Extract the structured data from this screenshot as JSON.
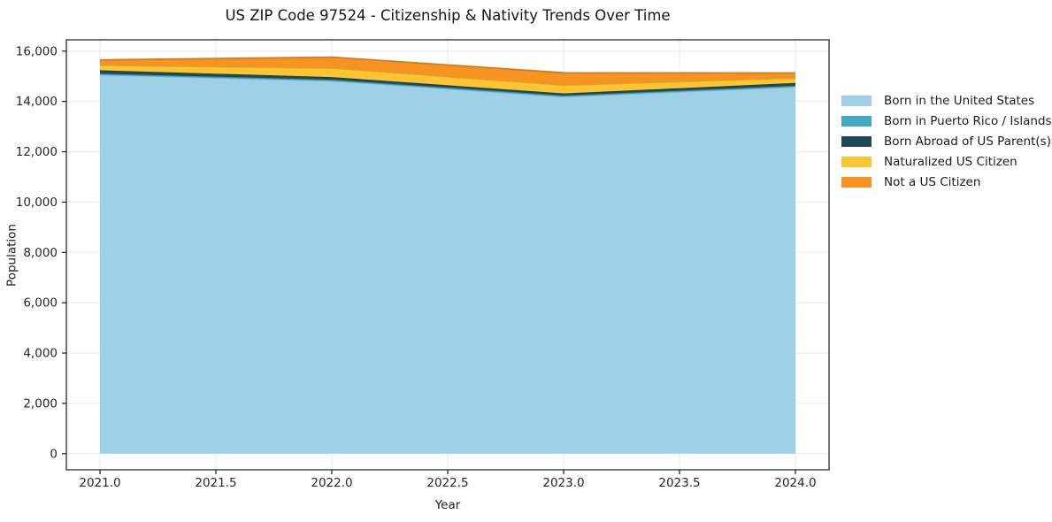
{
  "title": "US ZIP Code 97524 - Citizenship & Nativity Trends Over Time",
  "chart_data": {
    "type": "area",
    "stacked": true,
    "title": "US ZIP Code 97524 - Citizenship & Nativity Trends Over Time",
    "xlabel": "Year",
    "ylabel": "Population",
    "x": [
      2021,
      2022,
      2023,
      2024
    ],
    "series": [
      {
        "name": "Born in the United States",
        "color": "#9fd1e6",
        "values": [
          15060,
          14820,
          14190,
          14580
        ]
      },
      {
        "name": "Born in Puerto Rico / Islands",
        "color": "#42a9c5",
        "values": [
          45,
          45,
          45,
          45
        ]
      },
      {
        "name": "Born Abroad of US Parent(s)",
        "color": "#1e4a58",
        "values": [
          135,
          105,
          85,
          110
        ]
      },
      {
        "name": "Naturalized US Citizen",
        "color": "#fdc532",
        "values": [
          200,
          360,
          330,
          200
        ]
      },
      {
        "name": "Not a US Citizen",
        "color": "#f79321",
        "values": [
          210,
          430,
          490,
          195
        ]
      }
    ],
    "totals": [
      15650,
      15760,
      15140,
      15130
    ],
    "x_ticks": [
      "2021.0",
      "2021.5",
      "2022.0",
      "2022.5",
      "2023.0",
      "2023.5",
      "2024.0"
    ],
    "x_tick_values": [
      2021.0,
      2021.5,
      2022.0,
      2022.5,
      2023.0,
      2023.5,
      2024.0
    ],
    "y_ticks": [
      "0",
      "2,000",
      "4,000",
      "6,000",
      "8,000",
      "10,000",
      "12,000",
      "14,000",
      "16,000"
    ],
    "y_tick_values": [
      0,
      2000,
      4000,
      6000,
      8000,
      10000,
      12000,
      14000,
      16000
    ],
    "xlim": [
      2020.855,
      2024.145
    ],
    "ylim": [
      -640,
      16450
    ],
    "grid": true,
    "legend_position": "right-outside"
  },
  "colors": {
    "background": "#ffffff",
    "grid": "#e8e8f0",
    "spine": "#1a1a1a",
    "tick_text": "#262626"
  }
}
